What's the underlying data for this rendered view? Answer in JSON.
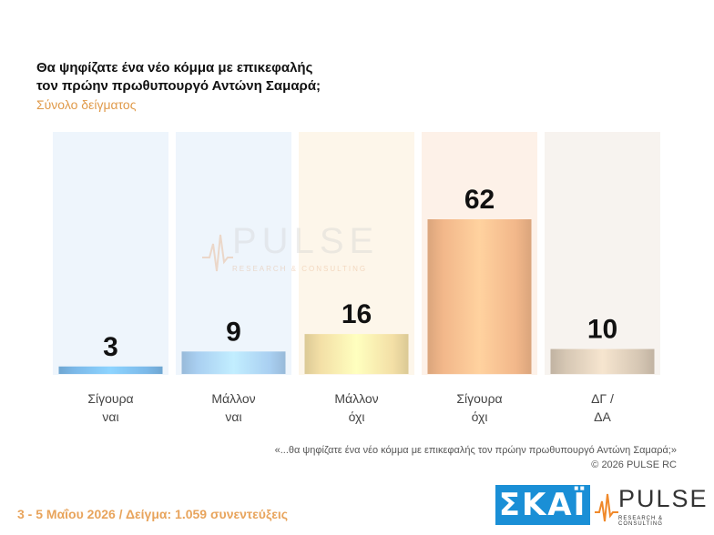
{
  "title_line1": "Θα ψηφίζατε ένα νέο κόμμα με επικεφαλής",
  "title_line2": "τον πρώην πρωθυπουργό Αντώνη Σαμαρά;",
  "subtitle": "Σύνολο δείγματος",
  "chart_data": {
    "type": "bar",
    "categories": [
      [
        "Σίγουρα",
        "ναι"
      ],
      [
        "Μάλλον",
        "ναι"
      ],
      [
        "Μάλλον",
        "όχι"
      ],
      [
        "Σίγουρα",
        "όχι"
      ],
      [
        "ΔΓ /",
        "ΔΑ"
      ]
    ],
    "values": [
      3,
      9,
      16,
      62,
      10
    ],
    "ylim": [
      0,
      62
    ],
    "colors": [
      "#7bb8e8",
      "#a9cff1",
      "#f3dfa6",
      "#f2b78a",
      "#d6c7b4"
    ],
    "panel_colors": [
      "#eef5fc",
      "#eef5fc",
      "#fdf6ea",
      "#fdf1e8",
      "#f7f3ef"
    ]
  },
  "watermark": {
    "brand": "PULSE",
    "tagline": "RESEARCH & CONSULTING"
  },
  "footnote_line1": "«...θα ψηφίζατε ένα νέο κόμμα με επικεφαλής τον πρώην πρωθυπουργό Αντώνη Σαμαρά;»",
  "footnote_line2": "©  2026  PULSE RC",
  "dateline": "3 - 5  Μαΐου 2026  /  Δείγμα:  1.059 συνεντεύξεις",
  "logos": {
    "skai": "ΣΚΑΪ",
    "pulse": "PULSE",
    "pulse_tagline": "RESEARCH & CONSULTING"
  }
}
